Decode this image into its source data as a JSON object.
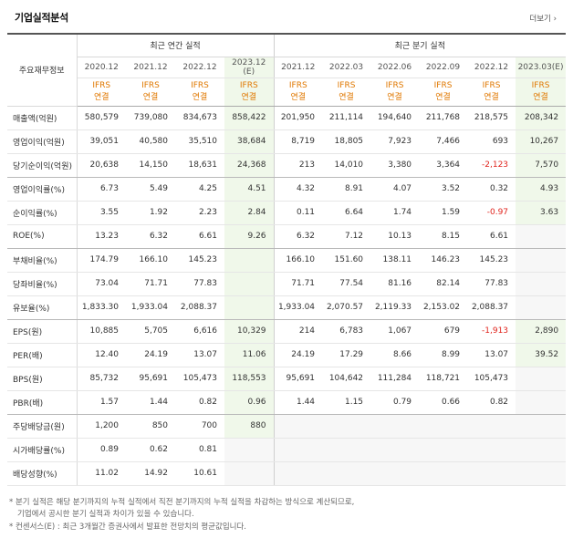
{
  "header": {
    "title": "기업실적분석",
    "more": "더보기"
  },
  "table": {
    "row_header": "주요재무정보",
    "group_annual": "최근 연간 실적",
    "group_quarter": "최근 분기 실적",
    "annual_cols": [
      "2020.12",
      "2021.12",
      "2022.12",
      "2023.12"
    ],
    "annual_est_label": "(E)",
    "quarter_cols": [
      "2021.12",
      "2022.03",
      "2022.06",
      "2022.09",
      "2022.12",
      "2023.03"
    ],
    "quarter_est_label": "(E)",
    "std_top": "IFRS",
    "std_bottom": "연결",
    "rows": [
      {
        "label": "매출액(억원)",
        "v": [
          "580,579",
          "739,080",
          "834,673",
          "858,422",
          "201,950",
          "211,114",
          "194,640",
          "211,768",
          "218,575",
          "208,342"
        ]
      },
      {
        "label": "영업이익(억원)",
        "v": [
          "39,051",
          "40,580",
          "35,510",
          "38,684",
          "8,719",
          "18,805",
          "7,923",
          "7,466",
          "693",
          "10,267"
        ]
      },
      {
        "label": "당기순이익(억원)",
        "v": [
          "20,638",
          "14,150",
          "18,631",
          "24,368",
          "213",
          "14,010",
          "3,380",
          "3,364",
          "-2,123",
          "7,570"
        ]
      },
      {
        "label": "영업이익률(%)",
        "v": [
          "6.73",
          "5.49",
          "4.25",
          "4.51",
          "4.32",
          "8.91",
          "4.07",
          "3.52",
          "0.32",
          "4.93"
        ]
      },
      {
        "label": "순이익률(%)",
        "v": [
          "3.55",
          "1.92",
          "2.23",
          "2.84",
          "0.11",
          "6.64",
          "1.74",
          "1.59",
          "-0.97",
          "3.63"
        ]
      },
      {
        "label": "ROE(%)",
        "v": [
          "13.23",
          "6.32",
          "6.61",
          "9.26",
          "6.32",
          "7.12",
          "10.13",
          "8.15",
          "6.61",
          ""
        ]
      },
      {
        "label": "부채비율(%)",
        "v": [
          "174.79",
          "166.10",
          "145.23",
          "",
          "166.10",
          "151.60",
          "138.11",
          "146.23",
          "145.23",
          ""
        ]
      },
      {
        "label": "당좌비율(%)",
        "v": [
          "73.04",
          "71.71",
          "77.83",
          "",
          "71.71",
          "77.54",
          "81.16",
          "82.14",
          "77.83",
          ""
        ]
      },
      {
        "label": "유보율(%)",
        "v": [
          "1,833.30",
          "1,933.04",
          "2,088.37",
          "",
          "1,933.04",
          "2,070.57",
          "2,119.33",
          "2,153.02",
          "2,088.37",
          ""
        ]
      },
      {
        "label": "EPS(원)",
        "v": [
          "10,885",
          "5,705",
          "6,616",
          "10,329",
          "214",
          "6,783",
          "1,067",
          "679",
          "-1,913",
          "2,890"
        ]
      },
      {
        "label": "PER(배)",
        "v": [
          "12.40",
          "24.19",
          "13.07",
          "11.06",
          "24.19",
          "17.29",
          "8.66",
          "8.99",
          "13.07",
          "39.52"
        ]
      },
      {
        "label": "BPS(원)",
        "v": [
          "85,732",
          "95,691",
          "105,473",
          "118,553",
          "95,691",
          "104,642",
          "111,284",
          "118,721",
          "105,473",
          ""
        ]
      },
      {
        "label": "PBR(배)",
        "v": [
          "1.57",
          "1.44",
          "0.82",
          "0.96",
          "1.44",
          "1.15",
          "0.79",
          "0.66",
          "0.82",
          ""
        ]
      },
      {
        "label": "주당배당금(원)",
        "v": [
          "1,200",
          "850",
          "700",
          "880",
          "",
          "",
          "",
          "",
          "",
          ""
        ]
      },
      {
        "label": "시가배당률(%)",
        "v": [
          "0.89",
          "0.62",
          "0.81",
          "",
          "",
          "",
          "",
          "",
          "",
          ""
        ]
      },
      {
        "label": "배당성향(%)",
        "v": [
          "11.02",
          "14.92",
          "10.61",
          "",
          "",
          "",
          "",
          "",
          "",
          ""
        ]
      }
    ]
  },
  "notes": [
    "* 분기 실적은 해당 분기까지의 누적 실적에서 직전 분기까지의 누적 실적을 차감하는 방식으로 계산되므로,",
    "기업에서 공시한 분기 실적과 차이가 있을 수 있습니다.",
    "* 컨센서스(E) : 최근 3개월간 증권사에서 발표한 전망치의 평균값입니다."
  ],
  "colors": {
    "standard": "#e07800",
    "negative": "#e0231c",
    "estimate_bg": "#f0f8ea"
  }
}
